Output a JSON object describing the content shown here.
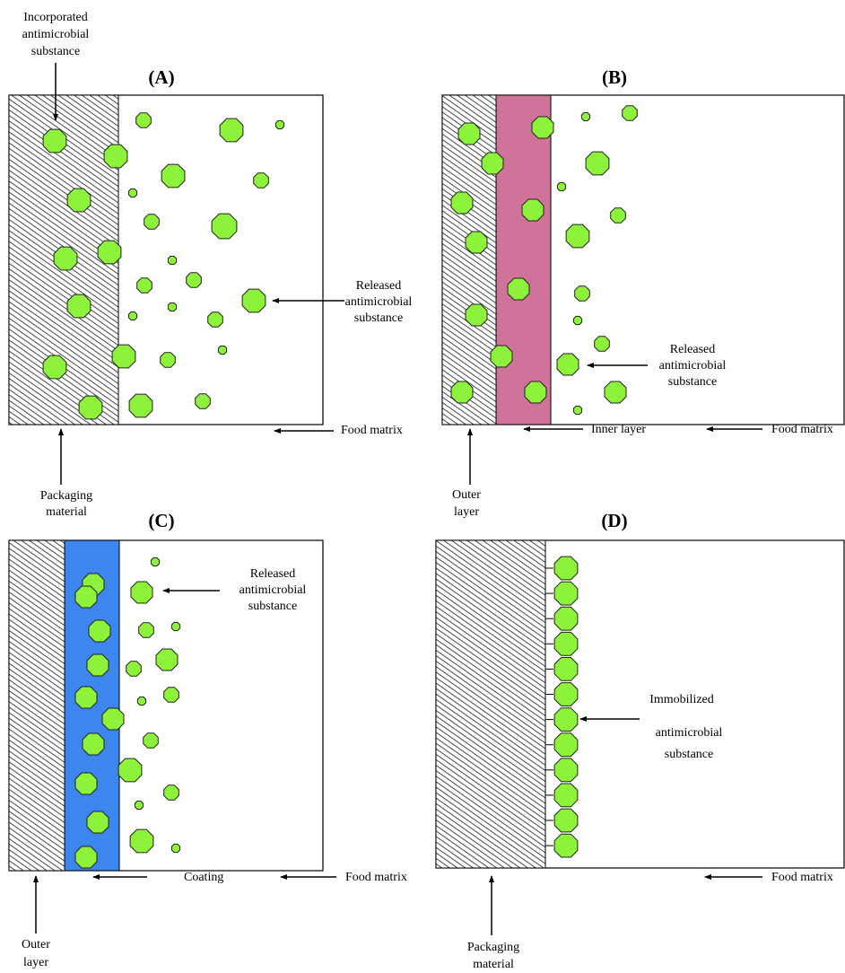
{
  "panels": [
    {
      "label": "(A)",
      "annotations": [
        {
          "lines": [
            "Incorporated",
            "antimicrobial",
            "substance"
          ]
        },
        {
          "lines": [
            "Released",
            "antimicrobial",
            "substance"
          ]
        },
        {
          "lines": [
            "Food matrix"
          ]
        },
        {
          "lines": [
            "Packaging",
            "material"
          ]
        }
      ]
    },
    {
      "label": "(B)",
      "annotations": [
        {
          "lines": [
            "Released",
            "antimicrobial",
            "substance"
          ]
        },
        {
          "lines": [
            "Inner layer"
          ]
        },
        {
          "lines": [
            "Food matrix"
          ]
        },
        {
          "lines": [
            "Outer",
            "layer"
          ]
        }
      ]
    },
    {
      "label": "(C)",
      "annotations": [
        {
          "lines": [
            "Released",
            "antimicrobial",
            "substance"
          ]
        },
        {
          "lines": [
            "Coating"
          ]
        },
        {
          "lines": [
            "Food matrix"
          ]
        },
        {
          "lines": [
            "Outer",
            "layer"
          ]
        }
      ]
    },
    {
      "label": "(D)",
      "annotations": [
        {
          "lines": [
            "Immobilized",
            "antimicrobial",
            "substance"
          ]
        },
        {
          "lines": [
            "Food matrix"
          ]
        },
        {
          "lines": [
            "Packaging",
            "material"
          ]
        }
      ]
    }
  ]
}
